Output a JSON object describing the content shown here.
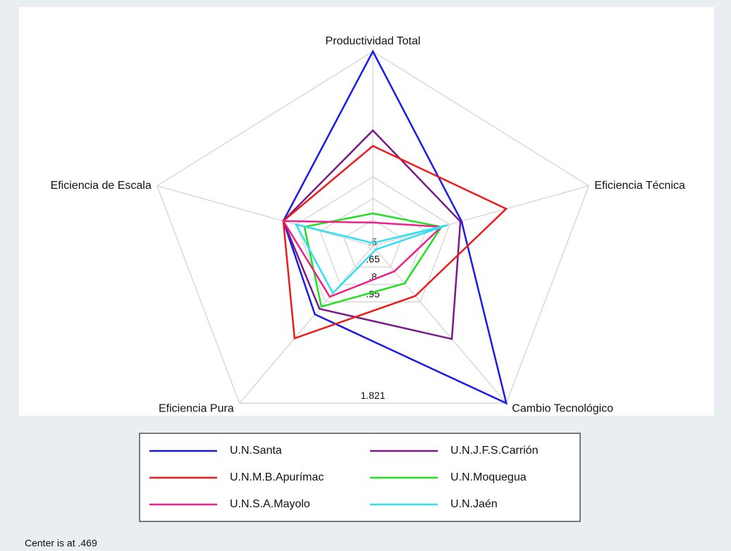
{
  "chart_data": {
    "type": "radar",
    "axes": [
      "Productividad Total",
      "Eficiencia Técnica",
      "Cambio Tecnológico",
      "Eficiencia Pura",
      "Eficiencia de Escala"
    ],
    "rlim": [
      0.469,
      1.821
    ],
    "rticks": [
      {
        "value": 0.5,
        "label": ".5"
      },
      {
        "value": 0.65,
        "label": ".65"
      },
      {
        "value": 0.8,
        "label": ".8"
      },
      {
        "value": 0.95,
        "label": ".95"
      },
      {
        "value": 1.821,
        "label": "1.821"
      }
    ],
    "series": [
      {
        "name": "U.N.Santa",
        "color": "#1a1aeb",
        "values": [
          1.821,
          1.024,
          1.821,
          1.057,
          1.03
        ]
      },
      {
        "name": "U.N.J.F.S.Carrión",
        "color": "#7a1a8a",
        "values": [
          1.272,
          1.017,
          1.269,
          1.01,
          1.03
        ]
      },
      {
        "name": "U.N.M.B.Apurímac",
        "color": "#f01a1a",
        "values": [
          1.164,
          1.304,
          0.899,
          1.263,
          1.03
        ]
      },
      {
        "name": "U.N.Moquegua",
        "color": "#22e022",
        "values": [
          0.695,
          0.898,
          0.791,
          0.991,
          0.898
        ]
      },
      {
        "name": "U.N.S.A.Mayolo",
        "color": "#f0208a",
        "values": [
          0.631,
          0.898,
          0.687,
          0.906,
          1.03
        ]
      },
      {
        "name": "U.N.Jaén",
        "color": "#30e0f0",
        "values": [
          0.489,
          0.937,
          0.5,
          0.875,
          0.95
        ]
      }
    ],
    "note": "Center is at .469"
  }
}
